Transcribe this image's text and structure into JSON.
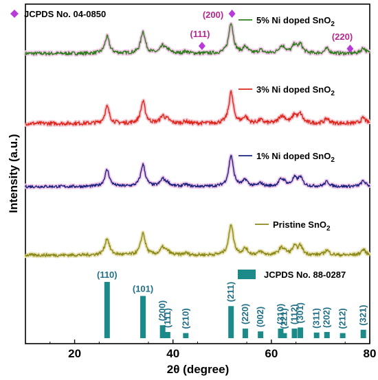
{
  "chart_data": {
    "type": "line",
    "xlabel_prefix": "2",
    "xlabel_theta": "θ",
    "xlabel_suffix": " (degree)",
    "ylabel": "Intensity (a.u.)",
    "xlim": [
      10,
      80
    ],
    "xticks": [
      "20",
      "40",
      "60",
      "80"
    ],
    "xtick_values": [
      20,
      40,
      60,
      80
    ],
    "series": [
      {
        "name_main": "5% Ni doped SnO",
        "name_sub": "2",
        "color": "#2e7d1c",
        "glow": "#f2c6e6",
        "offset": 3,
        "noise": 0.055
      },
      {
        "name_main": "3% Ni doped SnO",
        "name_sub": "2",
        "color": "#e0261a",
        "glow": "#f4c8d0",
        "offset": 2,
        "noise": 0.06
      },
      {
        "name_main": "1% Ni doped SnO",
        "name_sub": "2",
        "color": "#1a237e",
        "glow": "#f0c6e8",
        "offset": 1,
        "noise": 0.045
      },
      {
        "name_main": "Pristine SnO",
        "name_sub": "2",
        "color": "#8a8a1a",
        "glow": "#ebe3b8",
        "offset": 0,
        "noise": 0.05
      }
    ],
    "peaks_2theta": [
      26.6,
      33.9,
      37.9,
      38.9,
      42.6,
      51.8,
      54.7,
      57.8,
      61.9,
      62.6,
      64.7,
      65.9,
      71.3,
      78.7
    ],
    "peaks_rel_height": [
      0.42,
      0.55,
      0.18,
      0.08,
      0.05,
      0.78,
      0.16,
      0.08,
      0.14,
      0.1,
      0.2,
      0.22,
      0.12,
      0.14
    ],
    "reference_top": {
      "label": "JCPDS No. 04-0850",
      "color": "#b83bd9",
      "markers": [
        {
          "hkl": "(111)",
          "x": 45.9
        },
        {
          "hkl": "(200)",
          "x": 52.0
        },
        {
          "hkl": "(220)",
          "x": 76.0
        }
      ]
    },
    "reference_bottom": {
      "label": "JCPDS No. 88-0287",
      "color": "#1d8a8a",
      "bars": [
        {
          "hkl": "(110)",
          "x": 26.6,
          "value": 100
        },
        {
          "hkl": "(101)",
          "x": 33.9,
          "value": 75
        },
        {
          "hkl": "(200)",
          "x": 37.9,
          "value": 23
        },
        {
          "hkl": "(111)",
          "x": 38.9,
          "value": 11
        },
        {
          "hkl": "(210)",
          "x": 42.6,
          "value": 9
        },
        {
          "hkl": "(211)",
          "x": 51.8,
          "value": 57
        },
        {
          "hkl": "(220)",
          "x": 54.7,
          "value": 17
        },
        {
          "hkl": "(002)",
          "x": 57.8,
          "value": 12
        },
        {
          "hkl": "(310)",
          "x": 61.9,
          "value": 17
        },
        {
          "hkl": "(221)",
          "x": 62.6,
          "value": 9
        },
        {
          "hkl": "(112)",
          "x": 64.7,
          "value": 17
        },
        {
          "hkl": "(301)",
          "x": 65.9,
          "value": 19
        },
        {
          "hkl": "(311)",
          "x": 69.2,
          "value": 10
        },
        {
          "hkl": "(202)",
          "x": 71.3,
          "value": 11
        },
        {
          "hkl": "(212)",
          "x": 74.5,
          "value": 9
        },
        {
          "hkl": "(321)",
          "x": 78.7,
          "value": 15
        }
      ]
    }
  }
}
